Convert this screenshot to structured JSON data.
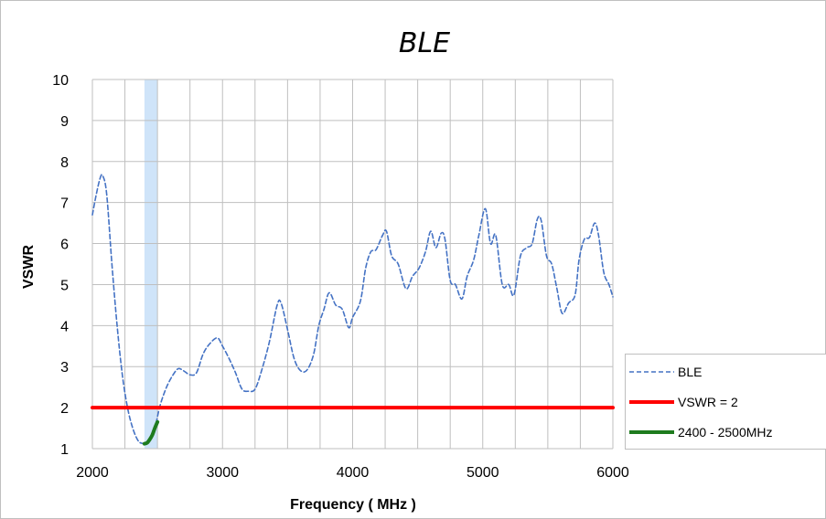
{
  "chart_data": {
    "type": "line",
    "title": "BLE",
    "xlabel": "Frequency ( MHz )",
    "ylabel": "VSWR",
    "xlim": [
      2000,
      6000
    ],
    "ylim": [
      1,
      10
    ],
    "x_ticks": [
      2000,
      3000,
      4000,
      5000,
      6000
    ],
    "y_ticks": [
      1,
      2,
      3,
      4,
      5,
      6,
      7,
      8,
      9,
      10
    ],
    "x_grid_step": 250,
    "grid": true,
    "legend_position": "right-bottom",
    "highlight_band": {
      "x": [
        2400,
        2500
      ],
      "color": "#cfe4f9"
    },
    "series": [
      {
        "name": "BLE",
        "style": "dashed",
        "color": "#4472c4",
        "points": [
          [
            2000,
            6.7
          ],
          [
            2030,
            7.2
          ],
          [
            2060,
            7.6
          ],
          [
            2080,
            7.65
          ],
          [
            2110,
            7.2
          ],
          [
            2150,
            5.5
          ],
          [
            2190,
            4.0
          ],
          [
            2230,
            2.8
          ],
          [
            2270,
            2.0
          ],
          [
            2310,
            1.5
          ],
          [
            2350,
            1.2
          ],
          [
            2380,
            1.13
          ],
          [
            2410,
            1.12
          ],
          [
            2440,
            1.22
          ],
          [
            2480,
            1.5
          ],
          [
            2520,
            2.05
          ],
          [
            2570,
            2.5
          ],
          [
            2620,
            2.8
          ],
          [
            2660,
            2.95
          ],
          [
            2700,
            2.9
          ],
          [
            2750,
            2.8
          ],
          [
            2800,
            2.85
          ],
          [
            2850,
            3.3
          ],
          [
            2900,
            3.55
          ],
          [
            2960,
            3.7
          ],
          [
            3000,
            3.5
          ],
          [
            3050,
            3.2
          ],
          [
            3100,
            2.85
          ],
          [
            3150,
            2.45
          ],
          [
            3200,
            2.4
          ],
          [
            3250,
            2.45
          ],
          [
            3300,
            2.9
          ],
          [
            3360,
            3.6
          ],
          [
            3420,
            4.5
          ],
          [
            3450,
            4.55
          ],
          [
            3500,
            3.9
          ],
          [
            3550,
            3.2
          ],
          [
            3600,
            2.9
          ],
          [
            3650,
            2.92
          ],
          [
            3700,
            3.3
          ],
          [
            3740,
            4.0
          ],
          [
            3780,
            4.4
          ],
          [
            3820,
            4.8
          ],
          [
            3870,
            4.5
          ],
          [
            3920,
            4.4
          ],
          [
            3970,
            3.95
          ],
          [
            4000,
            4.2
          ],
          [
            4060,
            4.6
          ],
          [
            4100,
            5.4
          ],
          [
            4140,
            5.8
          ],
          [
            4180,
            5.85
          ],
          [
            4230,
            6.2
          ],
          [
            4260,
            6.3
          ],
          [
            4300,
            5.7
          ],
          [
            4350,
            5.5
          ],
          [
            4410,
            4.9
          ],
          [
            4460,
            5.2
          ],
          [
            4510,
            5.4
          ],
          [
            4560,
            5.8
          ],
          [
            4600,
            6.3
          ],
          [
            4640,
            5.9
          ],
          [
            4680,
            6.25
          ],
          [
            4710,
            6.1
          ],
          [
            4750,
            5.1
          ],
          [
            4790,
            5.0
          ],
          [
            4840,
            4.65
          ],
          [
            4880,
            5.2
          ],
          [
            4930,
            5.6
          ],
          [
            4970,
            6.2
          ],
          [
            5020,
            6.85
          ],
          [
            5060,
            6.0
          ],
          [
            5100,
            6.2
          ],
          [
            5150,
            5.0
          ],
          [
            5200,
            5.0
          ],
          [
            5240,
            4.75
          ],
          [
            5290,
            5.7
          ],
          [
            5340,
            5.9
          ],
          [
            5380,
            6.0
          ],
          [
            5420,
            6.6
          ],
          [
            5450,
            6.55
          ],
          [
            5490,
            5.7
          ],
          [
            5530,
            5.5
          ],
          [
            5570,
            4.9
          ],
          [
            5610,
            4.3
          ],
          [
            5660,
            4.55
          ],
          [
            5710,
            4.75
          ],
          [
            5740,
            5.6
          ],
          [
            5780,
            6.1
          ],
          [
            5820,
            6.15
          ],
          [
            5860,
            6.5
          ],
          [
            5890,
            6.2
          ],
          [
            5930,
            5.3
          ],
          [
            5970,
            5.0
          ],
          [
            6000,
            4.7
          ]
        ]
      },
      {
        "name": "VSWR = 2",
        "style": "solid",
        "color": "#ff0000",
        "points": [
          [
            2000,
            2
          ],
          [
            6000,
            2
          ]
        ]
      },
      {
        "name": "2400 - 2500MHz",
        "style": "solid",
        "color": "#1e7b1e",
        "points": [
          [
            2400,
            1.12
          ],
          [
            2420,
            1.14
          ],
          [
            2440,
            1.22
          ],
          [
            2460,
            1.33
          ],
          [
            2480,
            1.5
          ],
          [
            2500,
            1.65
          ]
        ]
      }
    ]
  }
}
